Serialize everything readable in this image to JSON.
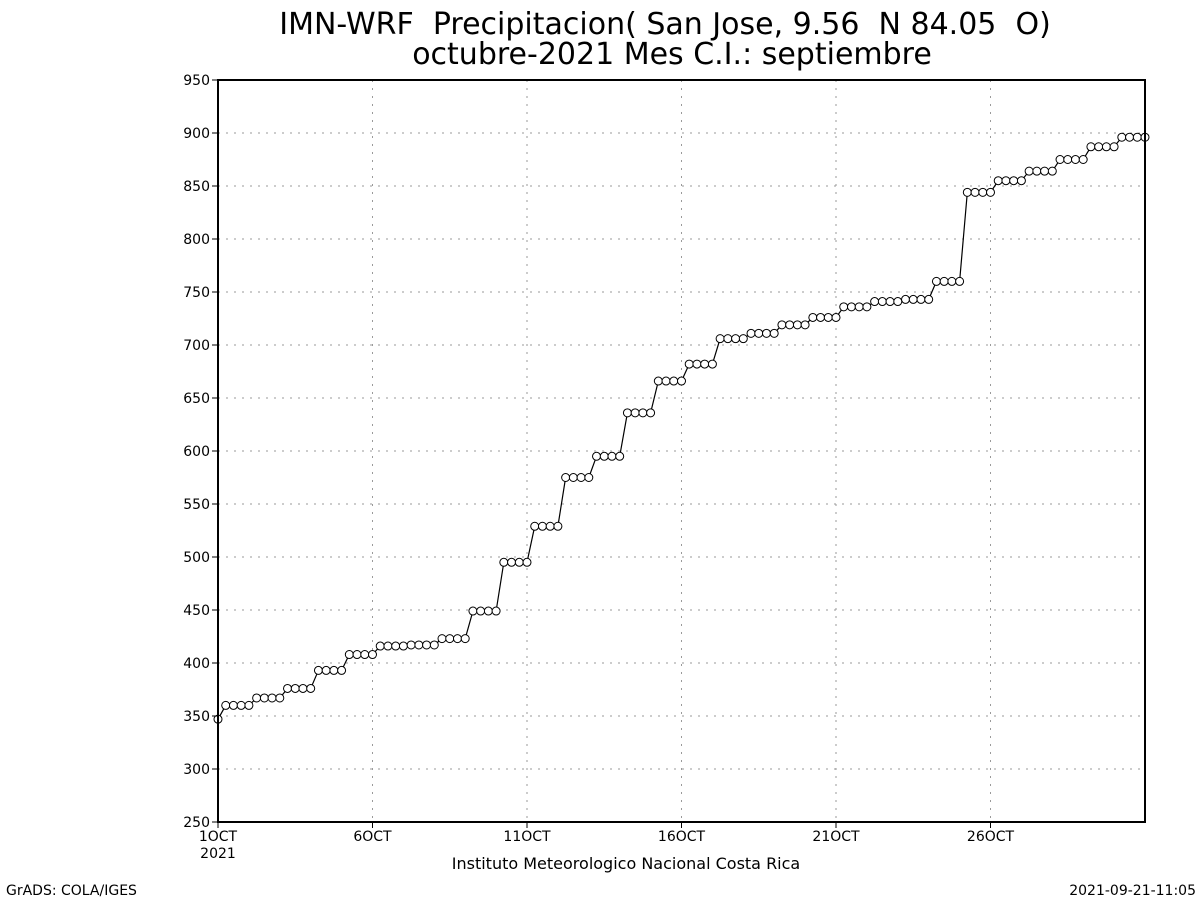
{
  "chart_data": {
    "type": "line",
    "title_line1": "IMN-WRF  Precipitacion( San Jose, 9.56  N 84.05  O)",
    "title_line2": "octubre-2021 Mes C.I.: septiembre",
    "xlabel": "Instituto Meteorologico Nacional Costa Rica",
    "ylabel": "",
    "ylim": [
      250,
      950
    ],
    "xlim": [
      1,
      31
    ],
    "y_ticks": [
      250,
      300,
      350,
      400,
      450,
      500,
      550,
      600,
      650,
      700,
      750,
      800,
      850,
      900,
      950
    ],
    "x_tick_labels": [
      {
        "day": 1,
        "label": "1OCT"
      },
      {
        "day": 6,
        "label": "6OCT"
      },
      {
        "day": 11,
        "label": "11OCT"
      },
      {
        "day": 16,
        "label": "16OCT"
      },
      {
        "day": 21,
        "label": "21OCT"
      },
      {
        "day": 26,
        "label": "26OCT"
      }
    ],
    "year_label": "2021",
    "grid": true,
    "marker": "open-circle",
    "series": [
      {
        "daily_values": [
          [
            360,
            360,
            360,
            360
          ],
          [
            367,
            367,
            367,
            367
          ],
          [
            376,
            376,
            376,
            376
          ],
          [
            393,
            393,
            393,
            393
          ],
          [
            408,
            408,
            408,
            408
          ],
          [
            416,
            416,
            416,
            416
          ],
          [
            417,
            417,
            417,
            417
          ],
          [
            423,
            423,
            423,
            423
          ],
          [
            449,
            449,
            449,
            449
          ],
          [
            495,
            495,
            495,
            495
          ],
          [
            529,
            529,
            529,
            529
          ],
          [
            575,
            575,
            575,
            575
          ],
          [
            595,
            595,
            595,
            595
          ],
          [
            636,
            636,
            636,
            636
          ],
          [
            666,
            666,
            666,
            666
          ],
          [
            682,
            682,
            682,
            682
          ],
          [
            706,
            706,
            706,
            706
          ],
          [
            711,
            711,
            711,
            711
          ],
          [
            719,
            719,
            719,
            719
          ],
          [
            726,
            726,
            726,
            726
          ],
          [
            736,
            736,
            736,
            736
          ],
          [
            741,
            741,
            741,
            741
          ],
          [
            743,
            743,
            743,
            743
          ],
          [
            760,
            760,
            760,
            760
          ],
          [
            844,
            844,
            844,
            844
          ],
          [
            855,
            855,
            855,
            855
          ],
          [
            864,
            864,
            864,
            864
          ],
          [
            875,
            875,
            875,
            875
          ],
          [
            887,
            887,
            887,
            887
          ],
          [
            896,
            896,
            896,
            896
          ]
        ],
        "start_value": 347
      }
    ]
  },
  "footer": {
    "left": "GrADS: COLA/IGES",
    "right": "2021-09-21-11:05"
  }
}
